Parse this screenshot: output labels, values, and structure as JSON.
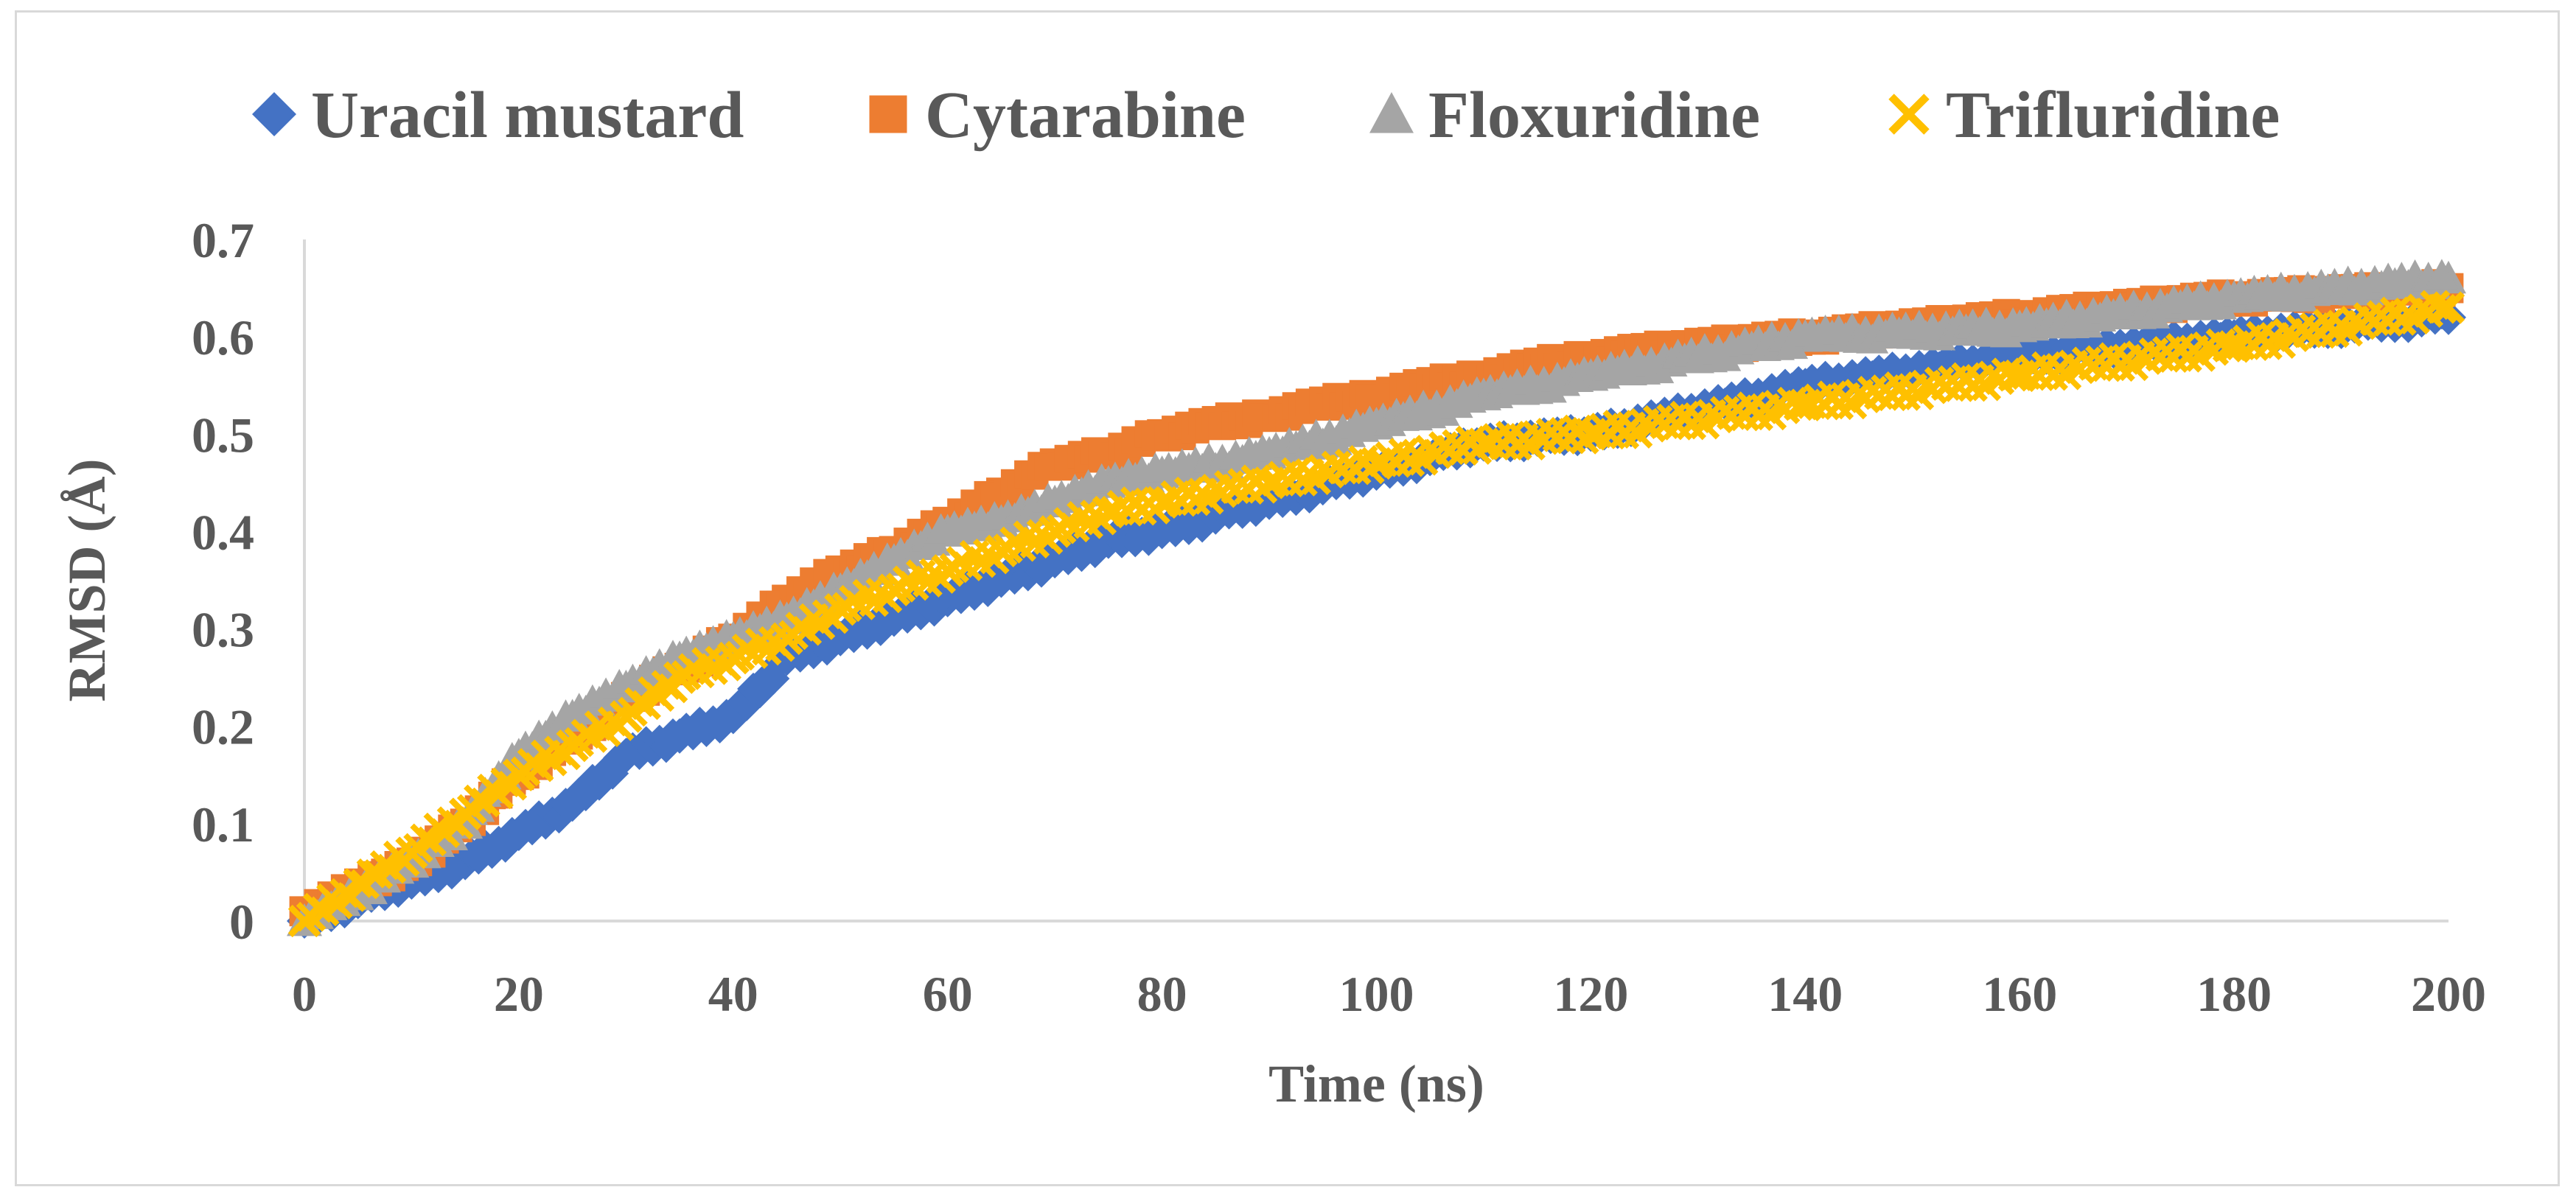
{
  "chart_data": {
    "type": "scatter",
    "xlabel": "Time (ns)",
    "ylabel": "RMSD (Å)",
    "xlim": [
      0,
      200
    ],
    "ylim": [
      0,
      0.7
    ],
    "xticks": [
      "0",
      "20",
      "40",
      "60",
      "80",
      "100",
      "120",
      "140",
      "160",
      "180",
      "200"
    ],
    "yticks": [
      "0",
      "0.1",
      "0.2",
      "0.3",
      "0.4",
      "0.5",
      "0.6",
      "0.7"
    ],
    "legend_position": "top",
    "grid": false,
    "series": [
      {
        "name": "Uracil mustard",
        "marker": "diamond",
        "color": "#4472c4",
        "x": [
          0,
          10,
          15,
          20,
          25,
          30,
          35,
          40,
          45,
          50,
          55,
          60,
          65,
          70,
          75,
          80,
          90,
          100,
          110,
          120,
          140,
          160,
          180,
          200
        ],
        "y": [
          0.0,
          0.04,
          0.06,
          0.09,
          0.12,
          0.17,
          0.19,
          0.21,
          0.27,
          0.29,
          0.31,
          0.33,
          0.35,
          0.37,
          0.39,
          0.4,
          0.43,
          0.46,
          0.49,
          0.5,
          0.55,
          0.58,
          0.6,
          0.62
        ]
      },
      {
        "name": "Cytarabine",
        "marker": "square",
        "color": "#ed7d31",
        "x": [
          0,
          10,
          15,
          20,
          25,
          30,
          35,
          40,
          45,
          50,
          55,
          60,
          65,
          70,
          75,
          80,
          90,
          100,
          110,
          120,
          140,
          160,
          180,
          200
        ],
        "y": [
          0.01,
          0.06,
          0.1,
          0.15,
          0.19,
          0.23,
          0.26,
          0.29,
          0.33,
          0.36,
          0.38,
          0.41,
          0.44,
          0.47,
          0.48,
          0.5,
          0.52,
          0.54,
          0.56,
          0.58,
          0.6,
          0.62,
          0.64,
          0.65
        ]
      },
      {
        "name": "Floxuridine",
        "marker": "triangle",
        "color": "#a5a5a5",
        "x": [
          0,
          10,
          15,
          20,
          25,
          30,
          35,
          40,
          45,
          50,
          55,
          60,
          65,
          70,
          75,
          80,
          90,
          100,
          110,
          120,
          140,
          160,
          180,
          200
        ],
        "y": [
          0.0,
          0.06,
          0.1,
          0.17,
          0.21,
          0.24,
          0.27,
          0.29,
          0.31,
          0.34,
          0.37,
          0.4,
          0.41,
          0.43,
          0.45,
          0.46,
          0.48,
          0.51,
          0.54,
          0.56,
          0.6,
          0.61,
          0.64,
          0.66
        ]
      },
      {
        "name": "Trifluridine",
        "marker": "x",
        "color": "#ffc000",
        "x": [
          0,
          10,
          15,
          20,
          25,
          30,
          35,
          40,
          45,
          50,
          55,
          60,
          65,
          70,
          75,
          80,
          90,
          100,
          110,
          120,
          140,
          160,
          180,
          200
        ],
        "y": [
          0.0,
          0.07,
          0.11,
          0.15,
          0.18,
          0.21,
          0.25,
          0.27,
          0.29,
          0.32,
          0.34,
          0.36,
          0.38,
          0.4,
          0.42,
          0.43,
          0.45,
          0.47,
          0.49,
          0.5,
          0.53,
          0.56,
          0.59,
          0.63
        ]
      }
    ]
  }
}
